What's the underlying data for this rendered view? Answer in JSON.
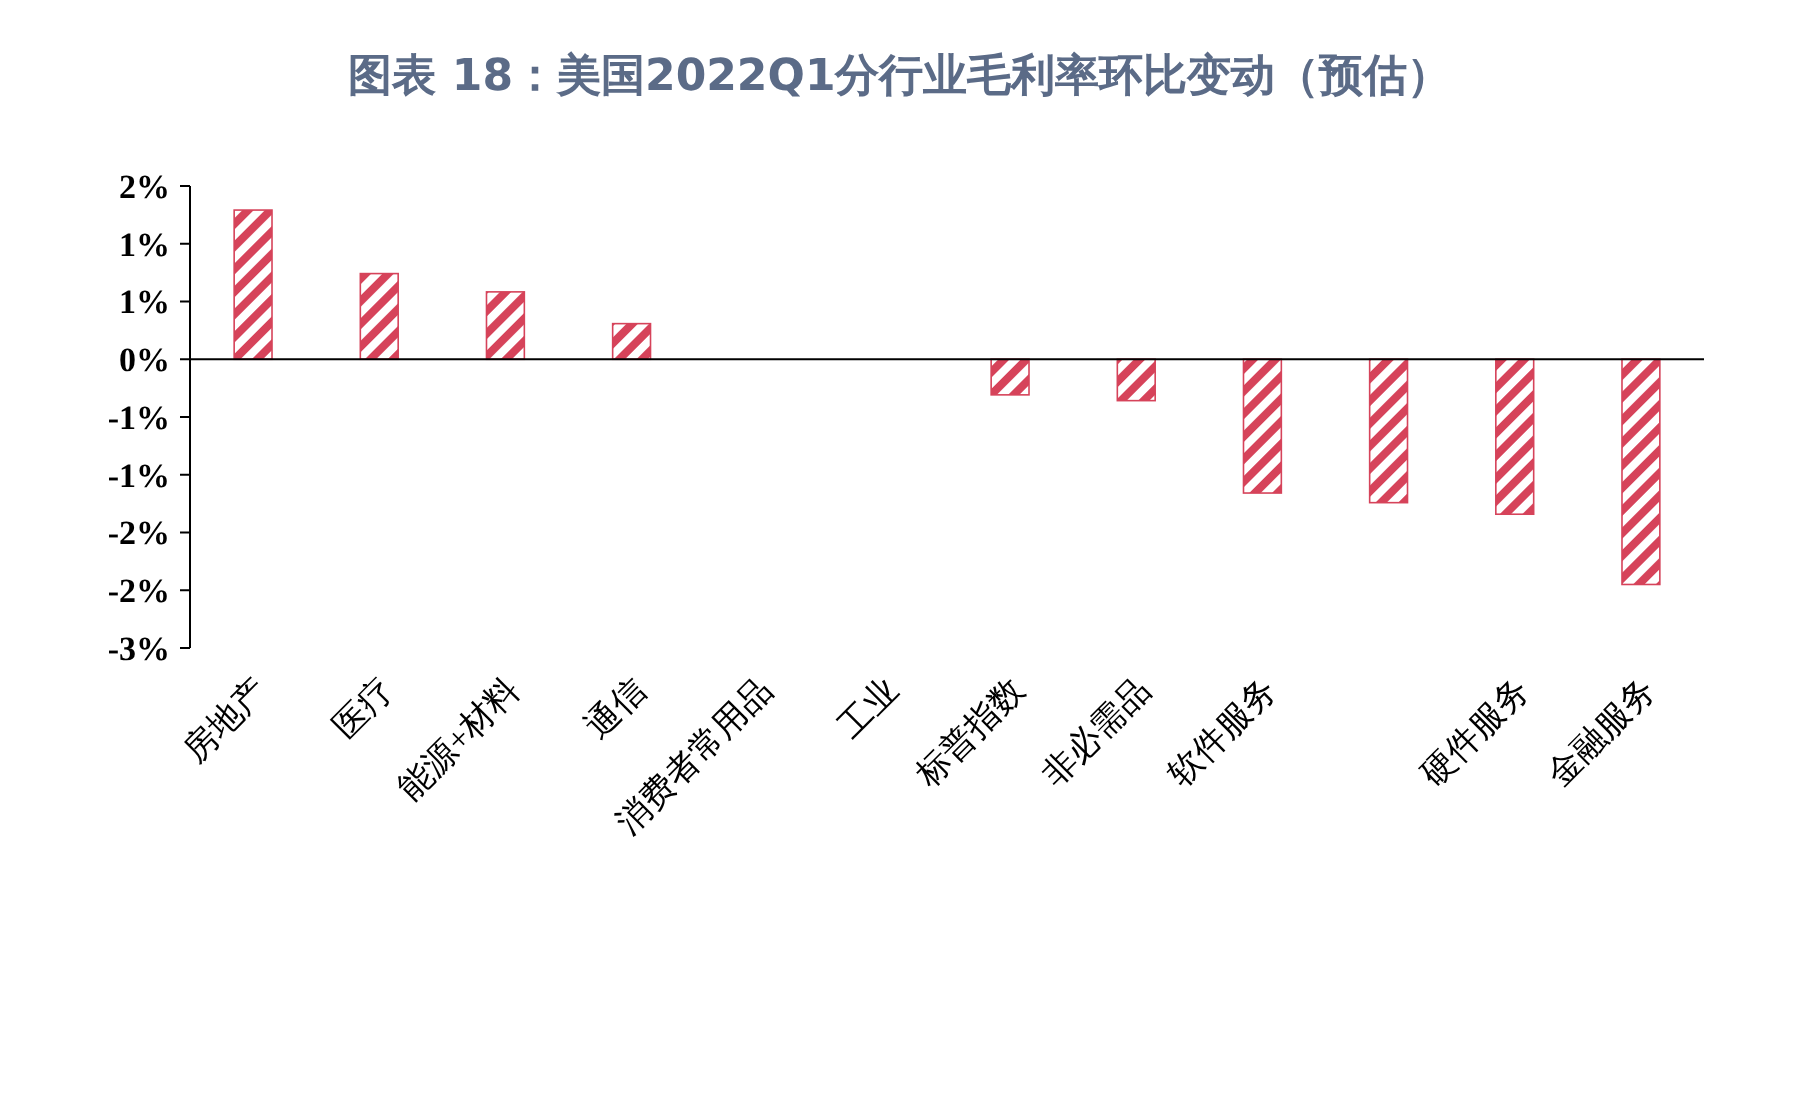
{
  "chart_data": {
    "type": "bar",
    "title": "图表 18：美国2022Q1分行业毛利率环比变动（预估）",
    "categories": [
      "房地产",
      "医疗",
      "能源+材料",
      "通信",
      "消费者常用品",
      "工业",
      "标普指数",
      "非必需品",
      "软件服务",
      null,
      "硬件服务",
      "金融服务"
    ],
    "values": [
      0.0155,
      0.0089,
      0.007,
      0.0037,
      0,
      0,
      -0.0037,
      -0.0043,
      -0.0139,
      -0.0149,
      -0.0161,
      -0.0234
    ],
    "color": "#d6435a",
    "ylim": [
      -0.03,
      0.018
    ],
    "yticks": [
      {
        "value": 0.018,
        "label": "2%"
      },
      {
        "value": 0.012,
        "label": "1%"
      },
      {
        "value": 0.006,
        "label": "1%"
      },
      {
        "value": 0,
        "label": "0%"
      },
      {
        "value": -0.006,
        "label": "-1%"
      },
      {
        "value": -0.012,
        "label": "-1%"
      },
      {
        "value": -0.018,
        "label": "-2%"
      },
      {
        "value": -0.024,
        "label": "-2%"
      },
      {
        "value": -0.03,
        "label": "-3%"
      }
    ]
  }
}
